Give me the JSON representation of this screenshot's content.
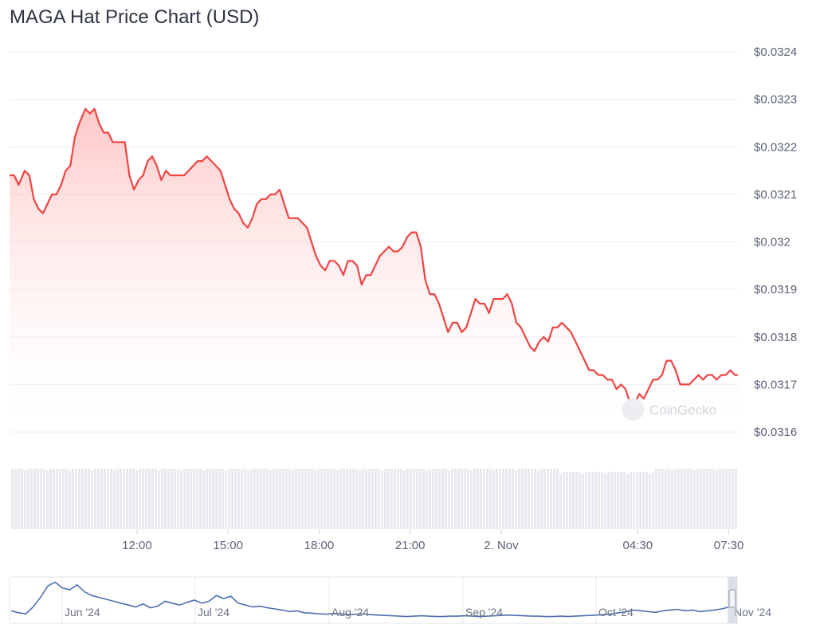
{
  "title": "MAGA Hat Price Chart (USD)",
  "watermark": "CoinGecko",
  "colors": {
    "line": "#ef4444",
    "fill_top": "#ffb3b3",
    "volume": "#e8eaee",
    "navigator": "#4f6fb0"
  },
  "chart_data": {
    "type": "area",
    "title": "MAGA Hat Price Chart (USD)",
    "ylim": [
      0.0316,
      0.0324
    ],
    "y_ticks": [
      "$0.0324",
      "$0.0323",
      "$0.0322",
      "$0.0321",
      "$0.032",
      "$0.0319",
      "$0.0318",
      "$0.0317",
      "$0.0316"
    ],
    "y_tick_values": [
      0.0324,
      0.0323,
      0.0322,
      0.0321,
      0.032,
      0.0319,
      0.0318,
      0.0317,
      0.0316
    ],
    "x_ticks": [
      "12:00",
      "15:00",
      "18:00",
      "21:00",
      "2. Nov",
      "04:30",
      "07:30"
    ],
    "x_tick_hours": [
      12,
      15,
      18,
      21,
      24,
      28.5,
      31.5
    ],
    "x_range_hours": [
      7.8,
      31.8
    ],
    "grid": true,
    "series": [
      {
        "points": [
          [
            7.8,
            0.03214
          ],
          [
            7.95,
            0.03214
          ],
          [
            8.1,
            0.03212
          ],
          [
            8.3,
            0.03215
          ],
          [
            8.45,
            0.03214
          ],
          [
            8.6,
            0.03209
          ],
          [
            8.75,
            0.03207
          ],
          [
            8.9,
            0.03206
          ],
          [
            9.05,
            0.03208
          ],
          [
            9.2,
            0.0321
          ],
          [
            9.35,
            0.0321
          ],
          [
            9.5,
            0.03212
          ],
          [
            9.65,
            0.03215
          ],
          [
            9.8,
            0.03216
          ],
          [
            9.95,
            0.03222
          ],
          [
            10.1,
            0.03225
          ],
          [
            10.3,
            0.03228
          ],
          [
            10.45,
            0.03227
          ],
          [
            10.6,
            0.03228
          ],
          [
            10.75,
            0.03225
          ],
          [
            10.9,
            0.03223
          ],
          [
            11.05,
            0.03223
          ],
          [
            11.2,
            0.03221
          ],
          [
            11.35,
            0.03221
          ],
          [
            11.5,
            0.03221
          ],
          [
            11.6,
            0.03221
          ],
          [
            11.75,
            0.03214
          ],
          [
            11.9,
            0.03211
          ],
          [
            12.05,
            0.03213
          ],
          [
            12.2,
            0.03214
          ],
          [
            12.35,
            0.03217
          ],
          [
            12.5,
            0.03218
          ],
          [
            12.65,
            0.03216
          ],
          [
            12.8,
            0.03213
          ],
          [
            12.95,
            0.03215
          ],
          [
            13.1,
            0.03214
          ],
          [
            13.25,
            0.03214
          ],
          [
            13.4,
            0.03214
          ],
          [
            13.55,
            0.03214
          ],
          [
            13.7,
            0.03215
          ],
          [
            13.85,
            0.03216
          ],
          [
            14.0,
            0.03217
          ],
          [
            14.15,
            0.03217
          ],
          [
            14.3,
            0.03218
          ],
          [
            14.45,
            0.03217
          ],
          [
            14.6,
            0.03216
          ],
          [
            14.75,
            0.03215
          ],
          [
            14.9,
            0.03212
          ],
          [
            15.05,
            0.03209
          ],
          [
            15.2,
            0.03207
          ],
          [
            15.35,
            0.03206
          ],
          [
            15.5,
            0.03204
          ],
          [
            15.65,
            0.03203
          ],
          [
            15.8,
            0.03205
          ],
          [
            15.95,
            0.03208
          ],
          [
            16.1,
            0.03209
          ],
          [
            16.25,
            0.03209
          ],
          [
            16.4,
            0.0321
          ],
          [
            16.55,
            0.0321
          ],
          [
            16.7,
            0.03211
          ],
          [
            16.85,
            0.03208
          ],
          [
            17.0,
            0.03205
          ],
          [
            17.15,
            0.03205
          ],
          [
            17.3,
            0.03205
          ],
          [
            17.45,
            0.03204
          ],
          [
            17.6,
            0.03203
          ],
          [
            17.75,
            0.032
          ],
          [
            17.9,
            0.03197
          ],
          [
            18.05,
            0.03195
          ],
          [
            18.2,
            0.03194
          ],
          [
            18.35,
            0.03196
          ],
          [
            18.5,
            0.03196
          ],
          [
            18.65,
            0.03195
          ],
          [
            18.8,
            0.03193
          ],
          [
            18.95,
            0.03196
          ],
          [
            19.1,
            0.03196
          ],
          [
            19.25,
            0.03195
          ],
          [
            19.4,
            0.03191
          ],
          [
            19.55,
            0.03193
          ],
          [
            19.7,
            0.03193
          ],
          [
            19.85,
            0.03195
          ],
          [
            20.0,
            0.03197
          ],
          [
            20.15,
            0.03198
          ],
          [
            20.3,
            0.03199
          ],
          [
            20.45,
            0.03198
          ],
          [
            20.6,
            0.03198
          ],
          [
            20.75,
            0.03199
          ],
          [
            20.9,
            0.03201
          ],
          [
            21.05,
            0.03202
          ],
          [
            21.2,
            0.03202
          ],
          [
            21.35,
            0.03199
          ],
          [
            21.5,
            0.03192
          ],
          [
            21.65,
            0.03189
          ],
          [
            21.8,
            0.03189
          ],
          [
            21.95,
            0.03187
          ],
          [
            22.1,
            0.03184
          ],
          [
            22.25,
            0.03181
          ],
          [
            22.4,
            0.03183
          ],
          [
            22.55,
            0.03183
          ],
          [
            22.7,
            0.03181
          ],
          [
            22.85,
            0.03182
          ],
          [
            23.0,
            0.03185
          ],
          [
            23.15,
            0.03188
          ],
          [
            23.3,
            0.03187
          ],
          [
            23.45,
            0.03187
          ],
          [
            23.6,
            0.03185
          ],
          [
            23.75,
            0.03188
          ],
          [
            23.9,
            0.03188
          ],
          [
            24.05,
            0.03188
          ],
          [
            24.2,
            0.03189
          ],
          [
            24.35,
            0.03187
          ],
          [
            24.5,
            0.03183
          ],
          [
            24.65,
            0.03182
          ],
          [
            24.8,
            0.0318
          ],
          [
            24.95,
            0.03178
          ],
          [
            25.1,
            0.03177
          ],
          [
            25.25,
            0.03179
          ],
          [
            25.4,
            0.0318
          ],
          [
            25.55,
            0.03179
          ],
          [
            25.7,
            0.03182
          ],
          [
            25.85,
            0.03182
          ],
          [
            26.0,
            0.03183
          ],
          [
            26.15,
            0.03182
          ],
          [
            26.3,
            0.03181
          ],
          [
            26.45,
            0.03179
          ],
          [
            26.6,
            0.03177
          ],
          [
            26.75,
            0.03175
          ],
          [
            26.9,
            0.03173
          ],
          [
            27.05,
            0.03173
          ],
          [
            27.2,
            0.03172
          ],
          [
            27.35,
            0.03172
          ],
          [
            27.5,
            0.03171
          ],
          [
            27.65,
            0.03171
          ],
          [
            27.8,
            0.03169
          ],
          [
            27.95,
            0.0317
          ],
          [
            28.1,
            0.03169
          ],
          [
            28.25,
            0.03166
          ],
          [
            28.4,
            0.03166
          ],
          [
            28.55,
            0.03168
          ],
          [
            28.7,
            0.03167
          ],
          [
            28.85,
            0.03169
          ],
          [
            29.0,
            0.03171
          ],
          [
            29.15,
            0.03171
          ],
          [
            29.3,
            0.03172
          ],
          [
            29.45,
            0.03175
          ],
          [
            29.6,
            0.03175
          ],
          [
            29.75,
            0.03173
          ],
          [
            29.9,
            0.0317
          ],
          [
            30.05,
            0.0317
          ],
          [
            30.2,
            0.0317
          ],
          [
            30.35,
            0.03171
          ],
          [
            30.5,
            0.03172
          ],
          [
            30.65,
            0.03171
          ],
          [
            30.8,
            0.03172
          ],
          [
            30.95,
            0.03172
          ],
          [
            31.1,
            0.03171
          ],
          [
            31.25,
            0.03172
          ],
          [
            31.4,
            0.03172
          ],
          [
            31.55,
            0.03173
          ],
          [
            31.7,
            0.03172
          ],
          [
            31.8,
            0.03172
          ]
        ]
      }
    ]
  },
  "navigator": {
    "x_labels": [
      "Jun '24",
      "Jul '24",
      "Aug '24",
      "Sep '24",
      "Oct '24",
      "Nov '24"
    ],
    "values": [
      0.2,
      0.15,
      0.12,
      0.3,
      0.55,
      0.85,
      0.95,
      0.8,
      0.75,
      0.88,
      0.7,
      0.6,
      0.55,
      0.5,
      0.45,
      0.4,
      0.35,
      0.3,
      0.38,
      0.28,
      0.32,
      0.45,
      0.4,
      0.35,
      0.42,
      0.48,
      0.4,
      0.45,
      0.6,
      0.52,
      0.58,
      0.4,
      0.35,
      0.3,
      0.32,
      0.28,
      0.25,
      0.22,
      0.18,
      0.2,
      0.15,
      0.14,
      0.12,
      0.11,
      0.13,
      0.12,
      0.1,
      0.11,
      0.12,
      0.1,
      0.09,
      0.08,
      0.07,
      0.06,
      0.05,
      0.06,
      0.07,
      0.06,
      0.05,
      0.05,
      0.06,
      0.06,
      0.07,
      0.06,
      0.05,
      0.06,
      0.07,
      0.08,
      0.09,
      0.08,
      0.07,
      0.06,
      0.06,
      0.05,
      0.05,
      0.06,
      0.05,
      0.06,
      0.07,
      0.08,
      0.09,
      0.1,
      0.12,
      0.15,
      0.18,
      0.22,
      0.2,
      0.18,
      0.16,
      0.2,
      0.22,
      0.24,
      0.2,
      0.22,
      0.18,
      0.2,
      0.22,
      0.25,
      0.3,
      0.4
    ]
  }
}
